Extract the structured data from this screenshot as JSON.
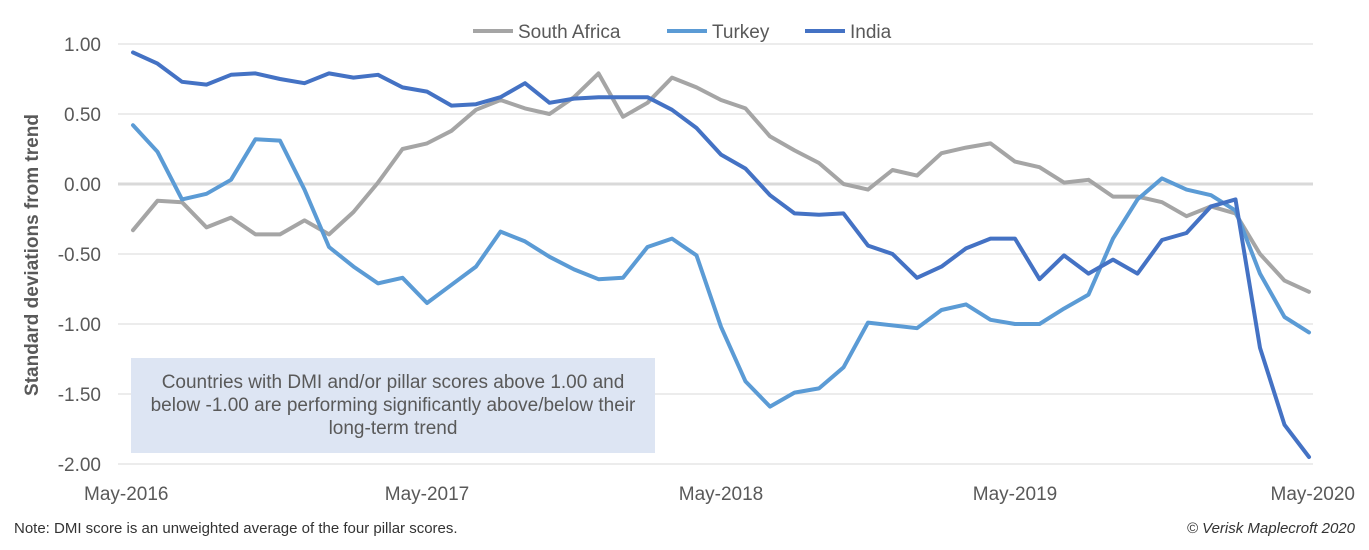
{
  "chart_data": {
    "type": "line",
    "title": "",
    "xlabel": "",
    "ylabel": "Standard deviations from  trend",
    "ylim": [
      -2.0,
      1.0
    ],
    "yticks": [
      "1.00",
      "0.50",
      "0.00",
      "-0.50",
      "-1.00",
      "-1.50",
      "-2.00"
    ],
    "ytick_values": [
      1.0,
      0.5,
      0.0,
      -0.5,
      -1.0,
      -1.5,
      -2.0
    ],
    "x_start": "May-2016",
    "x_end": "May-2020",
    "x_frequency": "monthly",
    "xticks": [
      {
        "label": "May-2016",
        "index": 0
      },
      {
        "label": "May-2017",
        "index": 12
      },
      {
        "label": "May-2018",
        "index": 24
      },
      {
        "label": "May-2019",
        "index": 36
      },
      {
        "label": "May-2020",
        "index": 48
      }
    ],
    "grid": true,
    "legend_position": "top-center",
    "series": [
      {
        "name": "South Africa",
        "color": "#a5a5a5",
        "values": [
          -0.33,
          -0.12,
          -0.13,
          -0.31,
          -0.24,
          -0.36,
          -0.36,
          -0.26,
          -0.36,
          -0.2,
          0.01,
          0.25,
          0.29,
          0.38,
          0.53,
          0.6,
          0.54,
          0.5,
          0.62,
          0.79,
          0.48,
          0.58,
          0.76,
          0.69,
          0.6,
          0.54,
          0.34,
          0.24,
          0.15,
          0.0,
          -0.04,
          0.1,
          0.06,
          0.22,
          0.26,
          0.29,
          0.16,
          0.12,
          0.01,
          0.03,
          -0.09,
          -0.09,
          -0.13,
          -0.23,
          -0.16,
          -0.21,
          -0.5,
          -0.69,
          -0.77
        ]
      },
      {
        "name": "Turkey",
        "color": "#5b9bd5",
        "values": [
          0.42,
          0.23,
          -0.11,
          -0.07,
          0.03,
          0.32,
          0.31,
          -0.04,
          -0.45,
          -0.59,
          -0.71,
          -0.67,
          -0.85,
          -0.72,
          -0.59,
          -0.34,
          -0.41,
          -0.52,
          -0.61,
          -0.68,
          -0.67,
          -0.45,
          -0.39,
          -0.51,
          -1.02,
          -1.41,
          -1.59,
          -1.49,
          -1.46,
          -1.31,
          -0.99,
          -1.01,
          -1.03,
          -0.9,
          -0.86,
          -0.97,
          -1.0,
          -1.0,
          -0.89,
          -0.79,
          -0.39,
          -0.11,
          0.04,
          -0.04,
          -0.08,
          -0.19,
          -0.64,
          -0.95,
          -1.06
        ]
      },
      {
        "name": "India",
        "color": "#4472c4",
        "values": [
          0.94,
          0.86,
          0.73,
          0.71,
          0.78,
          0.79,
          0.75,
          0.72,
          0.79,
          0.76,
          0.78,
          0.69,
          0.66,
          0.56,
          0.57,
          0.62,
          0.72,
          0.58,
          0.61,
          0.62,
          0.62,
          0.62,
          0.53,
          0.4,
          0.21,
          0.11,
          -0.08,
          -0.21,
          -0.22,
          -0.21,
          -0.44,
          -0.5,
          -0.67,
          -0.59,
          -0.46,
          -0.39,
          -0.39,
          -0.68,
          -0.51,
          -0.64,
          -0.54,
          -0.64,
          -0.4,
          -0.35,
          -0.16,
          -0.11,
          -1.17,
          -1.72,
          -1.95
        ]
      }
    ],
    "annotation": "Countries with DMI and/or pillar scores above 1.00 and below -1.00 are performing significantly above/below their long-term trend"
  },
  "footer": {
    "note": "Note: DMI score is an unweighted average of the four pillar scores.",
    "copyright": "© Verisk Maplecroft 2020"
  }
}
